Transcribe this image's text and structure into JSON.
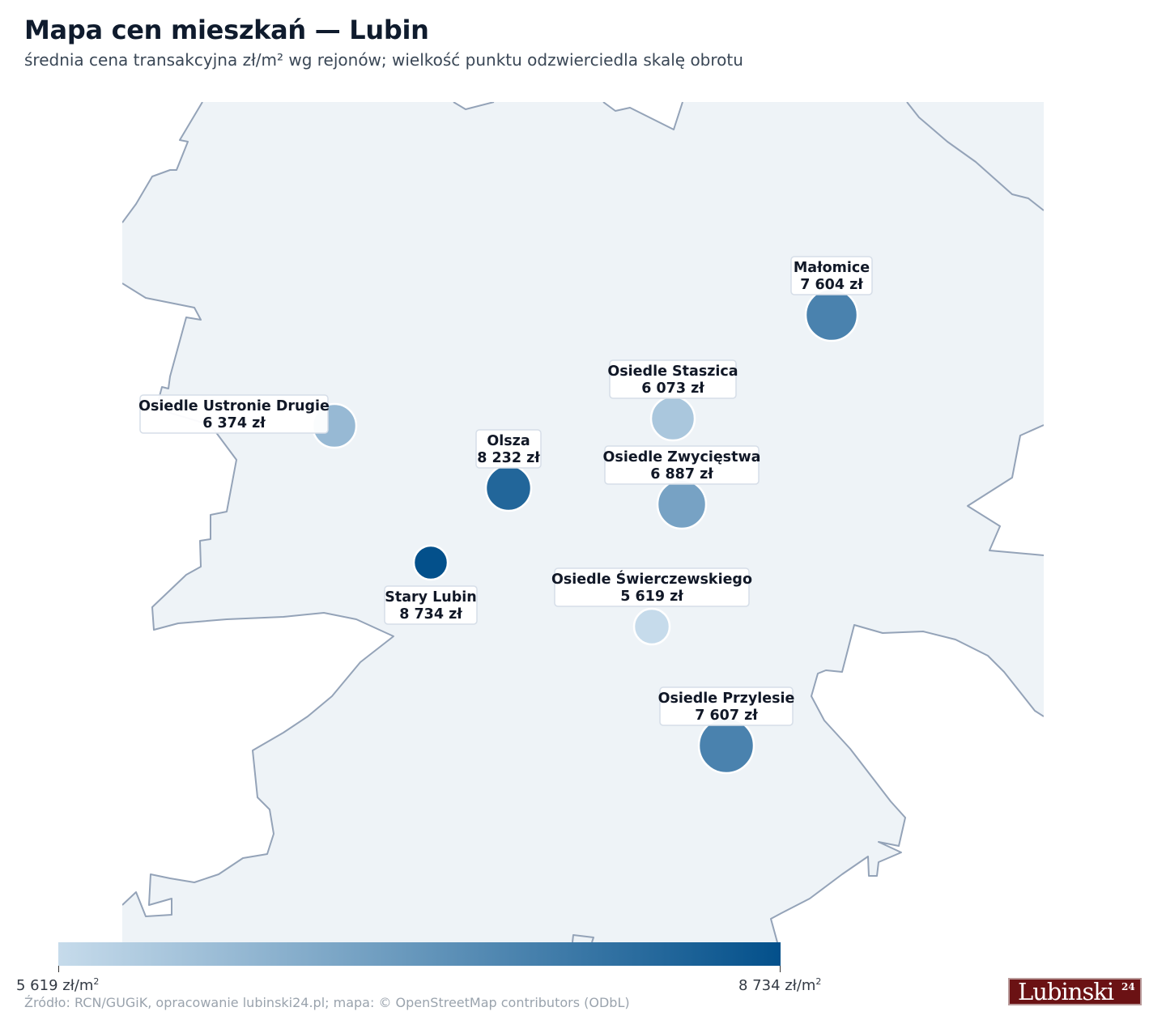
{
  "header": {
    "title": "Mapa cen mieszkań — Lubin",
    "subtitle": "średnia cena transakcyjna zł/m² wg rejonów; wielkość punktu odzwierciedla skalę obrotu"
  },
  "colors": {
    "land": "#eef3f7",
    "boundary": "#94a3b8",
    "scale_low": "#c6dbeb",
    "scale_high": "#03508b"
  },
  "districts": [
    {
      "name": "Małomice",
      "price": 7604,
      "price_label": "7 604 zł"
    },
    {
      "name": "Osiedle Staszica",
      "price": 6073,
      "price_label": "6 073 zł"
    },
    {
      "name": "Osiedle Ustronie Drugie",
      "price": 6374,
      "price_label": "6 374 zł"
    },
    {
      "name": "Olsza",
      "price": 8232,
      "price_label": "8 232 zł"
    },
    {
      "name": "Osiedle Zwycięstwa",
      "price": 6887,
      "price_label": "6 887 zł"
    },
    {
      "name": "Stary Lubin",
      "price": 8734,
      "price_label": "8 734 zł"
    },
    {
      "name": "Osiedle Świerczewskiego",
      "price": 5619,
      "price_label": "5 619 zł"
    },
    {
      "name": "Osiedle Przylesie",
      "price": 7607,
      "price_label": "7 607 zł"
    }
  ],
  "legend": {
    "min": 5619,
    "max": 8734,
    "min_label": "5 619 zł/m",
    "max_label": "8 734 zł/m",
    "unit_sup": "2"
  },
  "footer": {
    "source": "Źródło: RCN/GUGiK, opracowanie lubinski24.pl; mapa: © OpenStreetMap contributors (ODbL)",
    "logo_text": "Lubinski",
    "logo_sup": "24"
  }
}
